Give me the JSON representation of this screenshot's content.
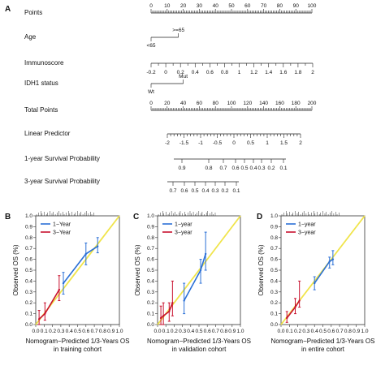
{
  "panel_labels": [
    "A",
    "B",
    "C",
    "D"
  ],
  "nomogram": {
    "rows": [
      {
        "label": "Points",
        "type": "axis",
        "ticks": [
          "0",
          "10",
          "20",
          "30",
          "40",
          "50",
          "60",
          "70",
          "80",
          "90",
          "100"
        ]
      },
      {
        "label": "Age",
        "type": "category",
        "levels": [
          {
            "text": ">=65",
            "points": 17
          },
          {
            "text": "<65",
            "points": 0
          }
        ]
      },
      {
        "label": "Immunoscore",
        "type": "axis",
        "ticks": [
          "-0.2",
          "0",
          "0.2",
          "0.4",
          "0.6",
          "0.8",
          "1",
          "1.2",
          "1.4",
          "1.6",
          "1.8",
          "2"
        ]
      },
      {
        "label": "IDH1 status",
        "type": "category",
        "levels": [
          {
            "text": "Mut",
            "points": 20
          },
          {
            "text": "Wt",
            "points": 0
          }
        ]
      },
      {
        "label": "Total Points",
        "type": "axis",
        "ticks": [
          "0",
          "20",
          "40",
          "60",
          "80",
          "100",
          "120",
          "140",
          "160",
          "180",
          "200"
        ]
      },
      {
        "label": "Linear Predictor",
        "type": "axis",
        "ticks": [
          "-2",
          "-1.5",
          "-1",
          "-0.5",
          "0",
          "0.5",
          "1",
          "1.5",
          "2"
        ]
      },
      {
        "label": "1-year Survival Probability",
        "type": "axis",
        "ticks": [
          "0.9",
          "0.8",
          "0.7",
          "0.6",
          "0.5",
          "0.4",
          "0.3",
          "0.2",
          "0.1"
        ]
      },
      {
        "label": "3-year Survival Probability",
        "type": "axis",
        "ticks": [
          "0.7",
          "0.6",
          "0.5",
          "0.4",
          "0.3",
          "0.2",
          "0.1"
        ]
      }
    ]
  },
  "chart_data": [
    {
      "type": "line",
      "panel": "B",
      "xlabel": "Nomogram−Predicted 1/3-Years OS",
      "xlabel2": "in training cohort",
      "ylabel": "Observed OS (%)",
      "xlim": [
        0,
        1
      ],
      "ylim": [
        0,
        1
      ],
      "ticks": [
        "0.0",
        "0.1",
        "0.2",
        "0.3",
        "0.4",
        "0.5",
        "0.6",
        "0.7",
        "0.8",
        "0.9",
        "1.0"
      ],
      "legend": [
        "1−Year",
        "3−Year"
      ],
      "legend_position": "top-left",
      "series": [
        {
          "name": "1−Year",
          "color": "#2a6fd6",
          "points": [
            [
              0.33,
              0.38,
              0.28,
              0.48
            ],
            [
              0.6,
              0.65,
              0.55,
              0.75
            ],
            [
              0.74,
              0.72,
              0.66,
              0.8
            ]
          ]
        },
        {
          "name": "3−Year",
          "color": "#c8102e",
          "points": [
            [
              0.04,
              0.05,
              0.0,
              0.13
            ],
            [
              0.11,
              0.1,
              0.04,
              0.2
            ],
            [
              0.28,
              0.32,
              0.22,
              0.45
            ]
          ]
        }
      ],
      "diagonal_color": "#f0e44a"
    },
    {
      "type": "line",
      "panel": "C",
      "xlabel": "Nomogram−Predicted 1/3-Years OS",
      "xlabel2": "in validation cohort",
      "ylabel": "Observed OS (%)",
      "xlim": [
        0,
        1
      ],
      "ylim": [
        0,
        1
      ],
      "ticks": [
        "0.0",
        "0.1",
        "0.2",
        "0.3",
        "0.4",
        "0.5",
        "0.6",
        "0.7",
        "0.8",
        "0.9",
        "1.0"
      ],
      "legend": [
        "1−year",
        "3−year"
      ],
      "legend_position": "top-left",
      "series": [
        {
          "name": "1−year",
          "color": "#2a6fd6",
          "points": [
            [
              0.32,
              0.22,
              0.1,
              0.38
            ],
            [
              0.52,
              0.5,
              0.38,
              0.6
            ],
            [
              0.58,
              0.65,
              0.5,
              0.85
            ]
          ]
        },
        {
          "name": "3−year",
          "color": "#c8102e",
          "points": [
            [
              0.04,
              0.06,
              0.0,
              0.17
            ],
            [
              0.07,
              0.08,
              0.0,
              0.2
            ],
            [
              0.14,
              0.12,
              0.03,
              0.2
            ],
            [
              0.18,
              0.2,
              0.08,
              0.4
            ]
          ]
        }
      ],
      "diagonal_color": "#f0e44a"
    },
    {
      "type": "line",
      "panel": "D",
      "xlabel": "Nomogram−Predicted 1/3-Years OS",
      "xlabel2": "in entire cohort",
      "ylabel": "Observed OS (%)",
      "xlim": [
        0,
        1
      ],
      "ylim": [
        0,
        1
      ],
      "ticks": [
        "0.0",
        "0.1",
        "0.2",
        "0.3",
        "0.4",
        "0.5",
        "0.6",
        "0.7",
        "0.8",
        "0.9",
        "1.0"
      ],
      "legend": [
        "1−year",
        "3−year"
      ],
      "legend_position": "top-left",
      "series": [
        {
          "name": "1−year",
          "color": "#2a6fd6",
          "points": [
            [
              0.4,
              0.38,
              0.32,
              0.44
            ],
            [
              0.58,
              0.58,
              0.52,
              0.62
            ],
            [
              0.62,
              0.6,
              0.55,
              0.68
            ]
          ]
        },
        {
          "name": "3−year",
          "color": "#c8102e",
          "points": [
            [
              0.07,
              0.06,
              0.02,
              0.12
            ],
            [
              0.17,
              0.16,
              0.1,
              0.24
            ],
            [
              0.22,
              0.22,
              0.16,
              0.4
            ]
          ]
        }
      ],
      "diagonal_color": "#f0e44a"
    }
  ]
}
